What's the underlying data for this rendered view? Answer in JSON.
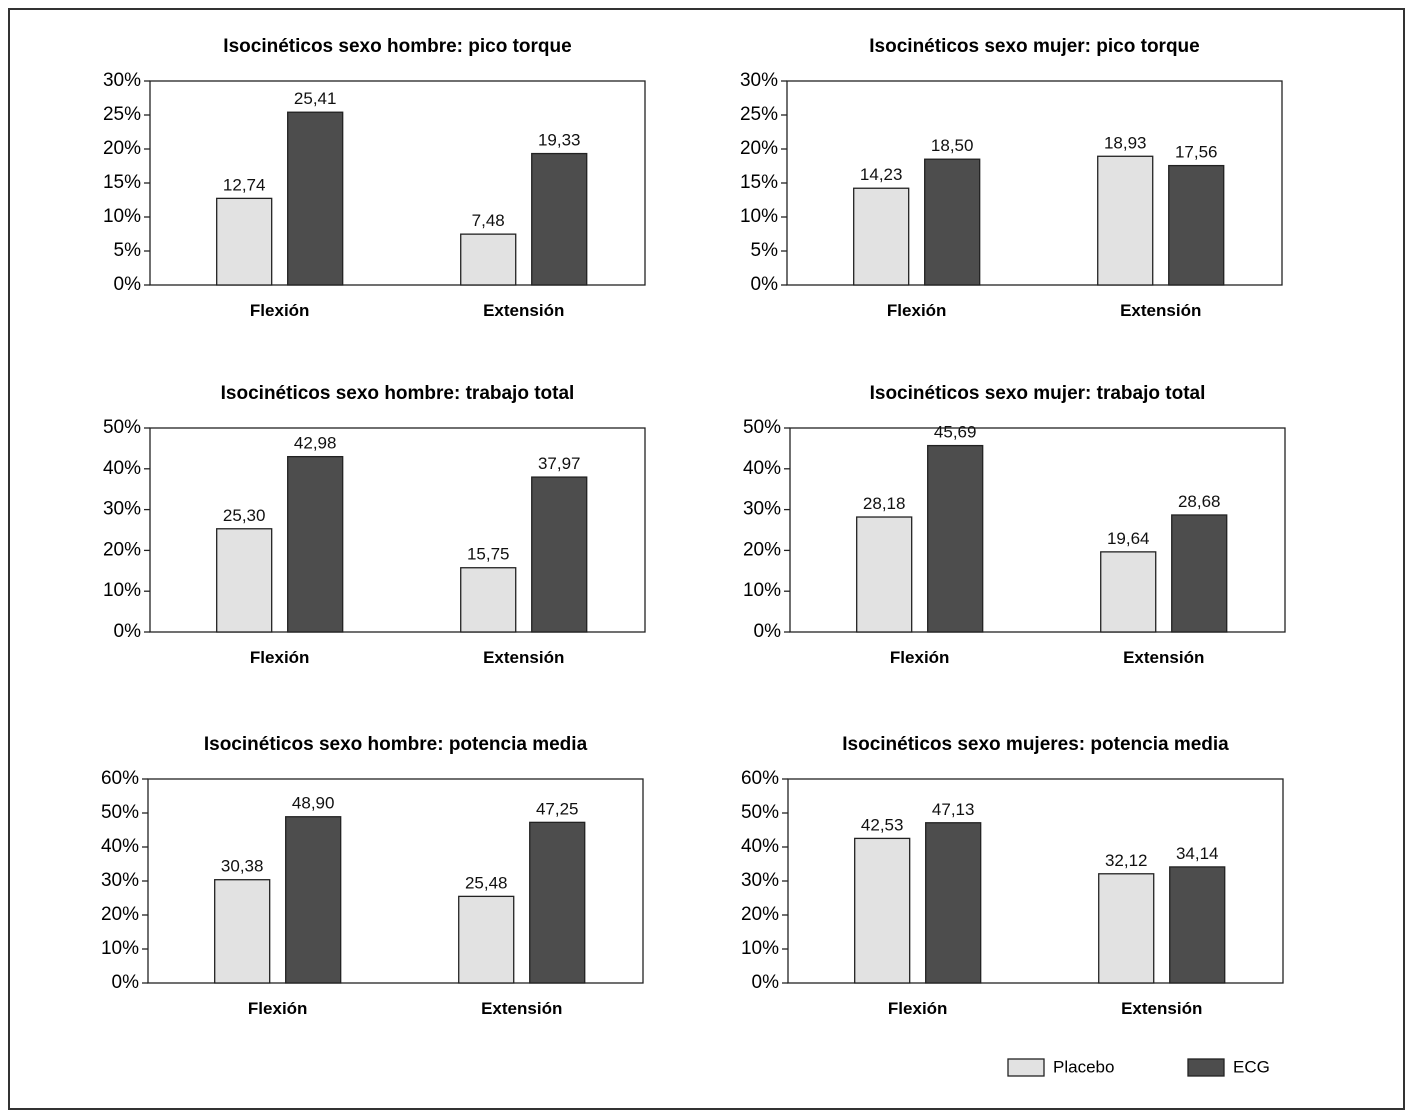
{
  "colors": {
    "placebo": "#e2e2e2",
    "ecg": "#4d4d4d",
    "axis": "#222222"
  },
  "legend": [
    {
      "series": "placebo",
      "label": "Placebo"
    },
    {
      "series": "ecg",
      "label": "ECG"
    }
  ],
  "chart_data": [
    {
      "type": "bar",
      "title": "Isocinéticos sexo hombre: pico torque",
      "categories": [
        "Flexión",
        "Extensión"
      ],
      "yticks": [
        "0%",
        "5%",
        "10%",
        "15%",
        "20%",
        "25%",
        "30%"
      ],
      "ylim": [
        0,
        30
      ],
      "series": [
        {
          "name": "Placebo",
          "values": [
            12.74,
            7.48
          ],
          "labels": [
            "12,74",
            "7,48"
          ]
        },
        {
          "name": "ECG",
          "values": [
            25.41,
            19.33
          ],
          "labels": [
            "25,41",
            "19,33"
          ]
        }
      ]
    },
    {
      "type": "bar",
      "title": "Isocinéticos sexo mujer: pico torque",
      "categories": [
        "Flexión",
        "Extensión"
      ],
      "yticks": [
        "0%",
        "5%",
        "10%",
        "15%",
        "20%",
        "25%",
        "30%"
      ],
      "ylim": [
        0,
        30
      ],
      "series": [
        {
          "name": "Placebo",
          "values": [
            14.23,
            18.93
          ],
          "labels": [
            "14,23",
            "18,93"
          ]
        },
        {
          "name": "ECG",
          "values": [
            18.5,
            17.56
          ],
          "labels": [
            "18,50",
            "17,56"
          ]
        }
      ]
    },
    {
      "type": "bar",
      "title": "Isocinéticos sexo hombre: trabajo total",
      "categories": [
        "Flexión",
        "Extensión"
      ],
      "yticks": [
        "0%",
        "10%",
        "20%",
        "30%",
        "40%",
        "50%"
      ],
      "ylim": [
        0,
        50
      ],
      "series": [
        {
          "name": "Placebo",
          "values": [
            25.3,
            15.75
          ],
          "labels": [
            "25,30",
            "15,75"
          ]
        },
        {
          "name": "ECG",
          "values": [
            42.98,
            37.97
          ],
          "labels": [
            "42,98",
            "37,97"
          ]
        }
      ]
    },
    {
      "type": "bar",
      "title": "Isocinéticos sexo mujer: trabajo total",
      "categories": [
        "Flexión",
        "Extensión"
      ],
      "yticks": [
        "0%",
        "10%",
        "20%",
        "30%",
        "40%",
        "50%"
      ],
      "ylim": [
        0,
        50
      ],
      "series": [
        {
          "name": "Placebo",
          "values": [
            28.18,
            19.64
          ],
          "labels": [
            "28,18",
            "19,64"
          ]
        },
        {
          "name": "ECG",
          "values": [
            45.69,
            28.68
          ],
          "labels": [
            "45,69",
            "28,68"
          ]
        }
      ]
    },
    {
      "type": "bar",
      "title": "Isocinéticos sexo hombre: potencia media",
      "categories": [
        "Flexión",
        "Extensión"
      ],
      "yticks": [
        "0%",
        "10%",
        "20%",
        "30%",
        "40%",
        "50%",
        "60%"
      ],
      "ylim": [
        0,
        60
      ],
      "series": [
        {
          "name": "Placebo",
          "values": [
            30.38,
            25.48
          ],
          "labels": [
            "30,38",
            "25,48"
          ]
        },
        {
          "name": "ECG",
          "values": [
            48.9,
            47.25
          ],
          "labels": [
            "48,90",
            "47,25"
          ]
        }
      ]
    },
    {
      "type": "bar",
      "title": "Isocinéticos sexo mujeres: potencia media",
      "categories": [
        "Flexión",
        "Extensión"
      ],
      "yticks": [
        "0%",
        "10%",
        "20%",
        "30%",
        "40%",
        "50%",
        "60%"
      ],
      "ylim": [
        0,
        60
      ],
      "series": [
        {
          "name": "Placebo",
          "values": [
            42.53,
            32.12
          ],
          "labels": [
            "42,53",
            "32,12"
          ]
        },
        {
          "name": "ECG",
          "values": [
            47.13,
            34.14
          ],
          "labels": [
            "47,13",
            "34,14"
          ]
        }
      ]
    }
  ]
}
